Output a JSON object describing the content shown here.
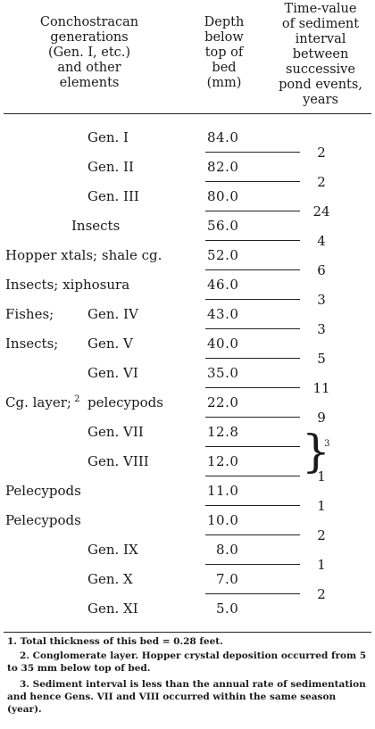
{
  "headers": {
    "elements": "Conchostracan\ngenerations\n(Gen. I, etc.)\nand other\nelements",
    "depth": "Depth\nbelow\ntop of\nbed\n(mm)",
    "time_value": "Time-value\nof sediment\ninterval\nbetween\nsuccessive\npond events,\nyears"
  },
  "rows": [
    {
      "left": "",
      "gen": "Gen. I",
      "depth": "84.0"
    },
    {
      "left": "",
      "gen": "Gen. II",
      "depth": "82.0"
    },
    {
      "left": "",
      "gen": "Gen. III",
      "depth": "80.0"
    },
    {
      "left": "",
      "gen": "Insects",
      "depth": "56.0"
    },
    {
      "left": "Hopper xtals; shale cg.",
      "gen": "",
      "depth": "52.0"
    },
    {
      "left": "Insects; xiphosura",
      "gen": "",
      "depth": "46.0"
    },
    {
      "left": "Fishes;",
      "gen": "Gen. IV",
      "depth": "43.0"
    },
    {
      "left": "Insects;",
      "gen": "Gen. V",
      "depth": "40.0"
    },
    {
      "left": "",
      "gen": "Gen. VI",
      "depth": "35.0"
    },
    {
      "left": "Cg. layer;",
      "left_sup": "2",
      "gen": "pelecypods",
      "depth": "22.0"
    },
    {
      "left": "",
      "gen": "Gen. VII",
      "depth": "12.8"
    },
    {
      "left": "",
      "gen": "Gen. VIII",
      "depth": "12.0"
    },
    {
      "left": "Pelecypods",
      "gen": "",
      "depth": "11.0"
    },
    {
      "left": "Pelecypods",
      "gen": "",
      "depth": "10.0"
    },
    {
      "left": "",
      "gen": "Gen. IX",
      "depth": "8.0"
    },
    {
      "left": "",
      "gen": "Gen. X",
      "depth": "7.0"
    },
    {
      "left": "",
      "gen": "Gen. XI",
      "depth": "5.0"
    }
  ],
  "time_values": [
    "2",
    "2",
    "24",
    "4",
    "6",
    "3",
    "3",
    "5",
    "11",
    "9",
    "1",
    "1",
    "1",
    "2",
    "1",
    "2"
  ],
  "time_value_sup": "3",
  "footnotes": [
    "1. Total thickness of this bed = 0.28 feet.",
    "2. Conglomerate layer. Hopper crystal deposition occurred from 5 to 35 mm below top of bed.",
    "3. Sediment interval is less than the annual rate of sedimentation and hence Gens. VII and VIII occurred within the same season (year)."
  ]
}
